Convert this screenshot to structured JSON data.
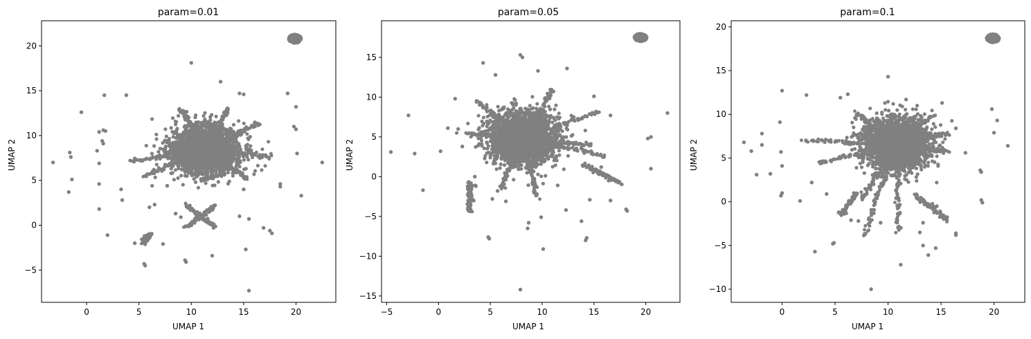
{
  "chart_data": [
    {
      "type": "scatter",
      "title": "param=0.01",
      "xlabel": "UMAP 1",
      "ylabel": "UMAP 2",
      "xlim": [
        -4.3,
        23.8
      ],
      "ylim": [
        -8.6,
        22.8
      ],
      "xticks": [
        0,
        5,
        10,
        15,
        20
      ],
      "yticks": [
        -5,
        0,
        5,
        10,
        15,
        20
      ],
      "point_color": "#808080",
      "grid": false,
      "legend": "none",
      "core": {
        "cx": 11.3,
        "cy": 8.4,
        "sx": 1.6,
        "sy": 1.3
      },
      "cluster": {
        "cx": 19.9,
        "cy": 20.8,
        "r": 0.6
      },
      "arms": [
        {
          "from": [
            11.3,
            8.4
          ],
          "to": [
            4.2,
            7.1
          ]
        },
        {
          "from": [
            11.3,
            8.4
          ],
          "to": [
            5.5,
            5.5
          ]
        },
        {
          "from": [
            11.3,
            8.4
          ],
          "to": [
            16.5,
            11.3
          ]
        },
        {
          "from": [
            11.3,
            8.4
          ],
          "to": [
            17.6,
            7.7
          ]
        },
        {
          "from": [
            11.3,
            8.4
          ],
          "to": [
            15.3,
            5.2
          ]
        },
        {
          "from": [
            11.3,
            8.4
          ],
          "to": [
            9.0,
            13.0
          ]
        },
        {
          "from": [
            11.3,
            8.4
          ],
          "to": [
            13.5,
            13.0
          ]
        },
        {
          "from": [
            9.5,
            2.2
          ],
          "to": [
            12.3,
            -0.2
          ]
        },
        {
          "from": [
            12.3,
            2.2
          ],
          "to": [
            9.5,
            -0.2
          ]
        },
        {
          "from": [
            6.1,
            -1.0
          ],
          "to": [
            5.4,
            -1.9
          ]
        }
      ],
      "points": [
        [
          1.2,
          10.4
        ],
        [
          1.6,
          10.6
        ],
        [
          1.8,
          10.5
        ],
        [
          1.5,
          9.4
        ],
        [
          1.6,
          9.1
        ],
        [
          1.0,
          8.3
        ],
        [
          1.2,
          6.9
        ],
        [
          1.2,
          4.6
        ],
        [
          1.2,
          1.8
        ],
        [
          2.0,
          -1.1
        ],
        [
          -1.6,
          8.1
        ],
        [
          -1.5,
          7.6
        ],
        [
          -1.4,
          5.1
        ],
        [
          -1.7,
          3.7
        ],
        [
          -3.2,
          7.0
        ],
        [
          -0.5,
          12.6
        ],
        [
          1.7,
          14.5
        ],
        [
          3.8,
          14.5
        ],
        [
          3.3,
          4.0
        ],
        [
          3.4,
          2.8
        ],
        [
          4.6,
          -2.0
        ],
        [
          5.5,
          -4.3
        ],
        [
          5.6,
          -4.5
        ],
        [
          7.3,
          -2.1
        ],
        [
          9.4,
          -3.9
        ],
        [
          9.5,
          -4.1
        ],
        [
          12.0,
          -3.4
        ],
        [
          15.2,
          -2.7
        ],
        [
          15.5,
          -7.3
        ],
        [
          17.5,
          -0.6
        ],
        [
          17.7,
          -0.9
        ],
        [
          16.9,
          -0.3
        ],
        [
          19.2,
          14.7
        ],
        [
          20.0,
          13.2
        ],
        [
          19.8,
          11.0
        ],
        [
          20.0,
          10.7
        ],
        [
          20.1,
          8.0
        ],
        [
          20.5,
          3.3
        ],
        [
          18.5,
          4.6
        ],
        [
          18.5,
          4.3
        ],
        [
          22.5,
          7.0
        ],
        [
          10.0,
          18.1
        ],
        [
          12.8,
          16.0
        ],
        [
          15.0,
          14.6
        ],
        [
          14.6,
          14.7
        ],
        [
          11.3,
          11.8
        ],
        [
          14.6,
          1.0
        ],
        [
          15.5,
          0.7
        ],
        [
          15.0,
          4.0
        ],
        [
          7.7,
          4.4
        ],
        [
          8.5,
          1.3
        ],
        [
          9.0,
          0.9
        ],
        [
          6.0,
          2.0
        ],
        [
          6.5,
          2.3
        ]
      ]
    },
    {
      "type": "scatter",
      "title": "param=0.05",
      "xlabel": "UMAP 1",
      "ylabel": "UMAP 2",
      "xlim": [
        -5.5,
        23.3
      ],
      "ylim": [
        -15.8,
        19.6
      ],
      "xticks": [
        -5,
        0,
        5,
        10,
        15,
        20
      ],
      "yticks": [
        -15,
        -10,
        -5,
        0,
        5,
        10,
        15
      ],
      "point_color": "#808080",
      "grid": false,
      "legend": "none",
      "core": {
        "cx": 8.1,
        "cy": 4.8,
        "sx": 1.6,
        "sy": 1.6
      },
      "cluster": {
        "cx": 19.5,
        "cy": 17.5,
        "r": 0.6
      },
      "arms": [
        {
          "from": [
            8.1,
            4.8
          ],
          "to": [
            3.6,
            9.6
          ]
        },
        {
          "from": [
            8.1,
            4.8
          ],
          "to": [
            2.7,
            5.4
          ]
        },
        {
          "from": [
            8.1,
            4.8
          ],
          "to": [
            15.6,
            8.2
          ]
        },
        {
          "from": [
            8.1,
            4.8
          ],
          "to": [
            16.0,
            2.6
          ]
        },
        {
          "from": [
            8.1,
            4.8
          ],
          "to": [
            14.7,
            4.0
          ]
        },
        {
          "from": [
            8.1,
            4.8
          ],
          "to": [
            6.0,
            -1.5
          ]
        },
        {
          "from": [
            8.1,
            4.8
          ],
          "to": [
            9.5,
            -2.6
          ]
        },
        {
          "from": [
            8.1,
            4.8
          ],
          "to": [
            11.0,
            11.0
          ]
        },
        {
          "from": [
            14.0,
            1.5
          ],
          "to": [
            17.6,
            -0.9
          ]
        },
        {
          "from": [
            3.0,
            -0.6
          ],
          "to": [
            3.0,
            -4.5
          ]
        }
      ],
      "points": [
        [
          -4.6,
          3.1
        ],
        [
          -2.9,
          7.7
        ],
        [
          -2.3,
          2.9
        ],
        [
          -1.5,
          -1.7
        ],
        [
          0.2,
          3.2
        ],
        [
          0.9,
          6.1
        ],
        [
          1.6,
          9.8
        ],
        [
          1.9,
          6.0
        ],
        [
          2.3,
          3.8
        ],
        [
          4.3,
          14.3
        ],
        [
          5.5,
          12.8
        ],
        [
          7.9,
          15.3
        ],
        [
          8.1,
          15.0
        ],
        [
          9.6,
          13.3
        ],
        [
          12.4,
          13.6
        ],
        [
          10.9,
          10.7
        ],
        [
          4.8,
          -7.6
        ],
        [
          4.9,
          -7.8
        ],
        [
          7.9,
          -14.2
        ],
        [
          8.6,
          -6.5
        ],
        [
          8.7,
          -5.8
        ],
        [
          9.9,
          -5.1
        ],
        [
          10.1,
          -9.1
        ],
        [
          12.3,
          -4.2
        ],
        [
          13.8,
          -5.6
        ],
        [
          14.3,
          -7.7
        ],
        [
          14.2,
          -8.0
        ],
        [
          15.7,
          1.2
        ],
        [
          16.6,
          -3.0
        ],
        [
          18.1,
          -4.1
        ],
        [
          18.2,
          -4.3
        ],
        [
          20.2,
          4.8
        ],
        [
          20.5,
          5.0
        ],
        [
          20.5,
          1.0
        ],
        [
          22.1,
          8.0
        ],
        [
          15.0,
          10.1
        ],
        [
          16.6,
          7.7
        ],
        [
          6.5,
          -3.1
        ],
        [
          5.7,
          -1.8
        ],
        [
          5.2,
          -2.8
        ],
        [
          14.6,
          -2.9
        ],
        [
          11.5,
          -1.1
        ],
        [
          3.5,
          0.0
        ],
        [
          3.6,
          -1.2
        ],
        [
          3.4,
          -3.0
        ]
      ]
    },
    {
      "type": "scatter",
      "title": "param=0.1",
      "xlabel": "UMAP 1",
      "ylabel": "UMAP 2",
      "xlim": [
        -4.8,
        22.9
      ],
      "ylim": [
        -11.5,
        20.7
      ],
      "xticks": [
        0,
        5,
        10,
        15,
        20
      ],
      "yticks": [
        -10,
        -5,
        0,
        5,
        10,
        15,
        20
      ],
      "point_color": "#808080",
      "grid": false,
      "legend": "none",
      "core": {
        "cx": 10.8,
        "cy": 6.6,
        "sx": 1.5,
        "sy": 1.4
      },
      "cluster": {
        "cx": 19.9,
        "cy": 18.7,
        "r": 0.6
      },
      "arms": [
        {
          "from": [
            10.8,
            6.6
          ],
          "to": [
            2.0,
            7.0
          ]
        },
        {
          "from": [
            10.8,
            6.6
          ],
          "to": [
            3.4,
            4.4
          ]
        },
        {
          "from": [
            10.8,
            6.6
          ],
          "to": [
            6.9,
            10.3
          ]
        },
        {
          "from": [
            10.8,
            6.6
          ],
          "to": [
            15.6,
            5.8
          ]
        },
        {
          "from": [
            10.8,
            6.6
          ],
          "to": [
            15.6,
            7.8
          ]
        },
        {
          "from": [
            10.8,
            6.6
          ],
          "to": [
            14.3,
            10.0
          ]
        },
        {
          "from": [
            10.8,
            6.6
          ],
          "to": [
            7.7,
            -3.9
          ]
        },
        {
          "from": [
            10.8,
            6.6
          ],
          "to": [
            11.0,
            -3.4
          ]
        },
        {
          "from": [
            10.8,
            6.6
          ],
          "to": [
            7.5,
            0.2
          ]
        },
        {
          "from": [
            12.5,
            0.8
          ],
          "to": [
            15.6,
            -2.1
          ]
        },
        {
          "from": [
            7.0,
            1.0
          ],
          "to": [
            5.6,
            -1.4
          ]
        }
      ],
      "points": [
        [
          -3.6,
          6.8
        ],
        [
          -2.9,
          5.8
        ],
        [
          -2.4,
          3.1
        ],
        [
          -1.9,
          7.8
        ],
        [
          -1.9,
          6.5
        ],
        [
          -1.1,
          3.2
        ],
        [
          -0.2,
          9.1
        ],
        [
          -0.1,
          5.7
        ],
        [
          0.0,
          4.1
        ],
        [
          0.0,
          1.0
        ],
        [
          -0.1,
          0.7
        ],
        [
          0.0,
          12.7
        ],
        [
          1.7,
          0.1
        ],
        [
          2.3,
          12.2
        ],
        [
          2.8,
          2.2
        ],
        [
          3.1,
          -5.7
        ],
        [
          4.8,
          -4.8
        ],
        [
          4.9,
          -4.7
        ],
        [
          5.5,
          11.9
        ],
        [
          6.2,
          12.3
        ],
        [
          8.4,
          -10.0
        ],
        [
          10.0,
          14.3
        ],
        [
          11.7,
          11.7
        ],
        [
          11.2,
          -7.2
        ],
        [
          13.8,
          -6.1
        ],
        [
          13.3,
          -5.0
        ],
        [
          14.5,
          -5.3
        ],
        [
          16.4,
          -3.6
        ],
        [
          16.4,
          -3.8
        ],
        [
          16.4,
          8.4
        ],
        [
          17.3,
          5.6
        ],
        [
          18.7,
          3.6
        ],
        [
          18.8,
          3.4
        ],
        [
          18.8,
          0.2
        ],
        [
          18.9,
          -0.1
        ],
        [
          19.8,
          10.6
        ],
        [
          20.0,
          7.9
        ],
        [
          20.3,
          9.3
        ],
        [
          21.3,
          6.4
        ],
        [
          15.1,
          11.3
        ],
        [
          13.3,
          -2.4
        ],
        [
          13.0,
          -3.5
        ],
        [
          7.2,
          -2.2
        ],
        [
          6.5,
          -2.1
        ],
        [
          4.2,
          0.9
        ],
        [
          9.3,
          -2.4
        ],
        [
          14.6,
          -0.5
        ]
      ]
    }
  ]
}
